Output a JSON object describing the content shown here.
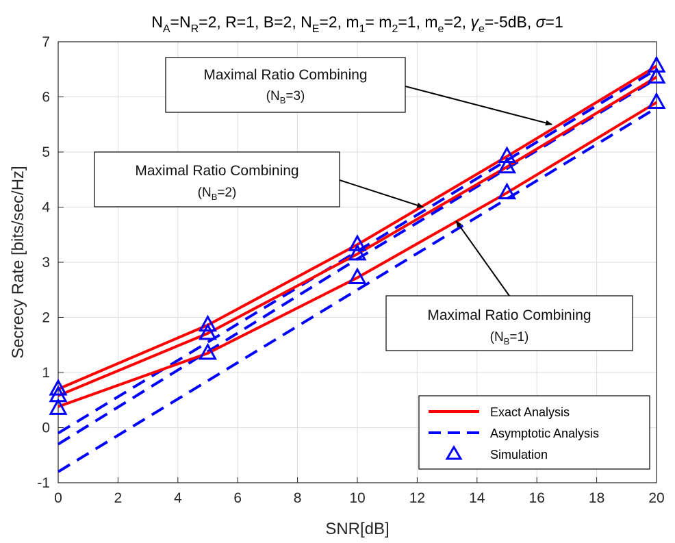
{
  "chart_data": {
    "type": "line",
    "title": {
      "NA": "N",
      "NA_sub": "A",
      "eq1": "=N",
      "NR_sub": "R",
      "rest1": "=2, R=1, B=2, N",
      "NE_sub": "E",
      "rest2": "=2, m",
      "m1_sub": "1",
      "rest3": "= m",
      "m2_sub": "2",
      "rest4": "=1, m",
      "me_sub": "e",
      "rest5": "=2, ",
      "gamma": "γ",
      "gamma_sub": "e",
      "rest6": "=-5dB, ",
      "sigma": "σ",
      "rest7": "=1"
    },
    "xlabel": "SNR[dB]",
    "ylabel": "Secrecy Rate [bits/sec/Hz]",
    "xlim": [
      0,
      20
    ],
    "ylim": [
      -1,
      7
    ],
    "xticks": [
      "0",
      "2",
      "4",
      "6",
      "8",
      "10",
      "12",
      "14",
      "16",
      "18",
      "20"
    ],
    "yticks": [
      "-1",
      "0",
      "1",
      "2",
      "3",
      "4",
      "5",
      "6",
      "7"
    ],
    "grid": true,
    "x": [
      0,
      5,
      10,
      15,
      20
    ],
    "series": [
      {
        "name": "Exact Analysis (N_B=3)",
        "style": "exact",
        "color": "#ff0000",
        "values": [
          0.7,
          1.86,
          3.32,
          4.92,
          6.56
        ]
      },
      {
        "name": "Exact Analysis (N_B=2)",
        "style": "exact",
        "color": "#ff0000",
        "values": [
          0.58,
          1.71,
          3.15,
          4.73,
          6.36
        ]
      },
      {
        "name": "Exact Analysis (N_B=1)",
        "style": "exact",
        "color": "#ff0000",
        "values": [
          0.38,
          1.35,
          2.72,
          4.26,
          5.9
        ]
      },
      {
        "name": "Asymptotic Analysis (N_B=3)",
        "style": "asymptotic",
        "color": "#0000ff",
        "values": [
          -0.1,
          1.55,
          3.2,
          4.85,
          6.5
        ]
      },
      {
        "name": "Asymptotic Analysis (N_B=2)",
        "style": "asymptotic",
        "color": "#0000ff",
        "values": [
          -0.3,
          1.38,
          3.06,
          4.7,
          6.33
        ]
      },
      {
        "name": "Asymptotic Analysis (N_B=1)",
        "style": "asymptotic",
        "color": "#0000ff",
        "values": [
          -0.8,
          0.85,
          2.5,
          4.15,
          5.8
        ]
      },
      {
        "name": "Simulation (N_B=3)",
        "style": "simulation",
        "color": "#0000ff",
        "values": [
          0.7,
          1.86,
          3.32,
          4.92,
          6.56
        ]
      },
      {
        "name": "Simulation (N_B=2)",
        "style": "simulation",
        "color": "#0000ff",
        "values": [
          0.58,
          1.71,
          3.15,
          4.73,
          6.36
        ]
      },
      {
        "name": "Simulation (N_B=1)",
        "style": "simulation",
        "color": "#0000ff",
        "values": [
          0.35,
          1.35,
          2.72,
          4.26,
          5.9
        ]
      }
    ],
    "legend": {
      "position": "bottom-right",
      "entries": [
        {
          "label": "Exact Analysis",
          "style": "exact",
          "color": "#ff0000"
        },
        {
          "label": "Asymptotic Analysis",
          "style": "asymptotic",
          "color": "#0000ff"
        },
        {
          "label": "Simulation",
          "style": "simulation",
          "color": "#0000ff"
        }
      ]
    },
    "annotations": [
      {
        "text": "Maximal Ratio Combining",
        "sub_prefix": "(N",
        "sub": "B",
        "sub_suffix": "=3)",
        "target": [
          16.5,
          5.5
        ]
      },
      {
        "text": "Maximal Ratio Combining",
        "sub_prefix": "(N",
        "sub": "B",
        "sub_suffix": "=2)",
        "target": [
          12.2,
          4.0
        ]
      },
      {
        "text": "Maximal Ratio Combining",
        "sub_prefix": "(N",
        "sub": "B",
        "sub_suffix": "=1)",
        "target": [
          13.3,
          3.75
        ]
      }
    ]
  }
}
